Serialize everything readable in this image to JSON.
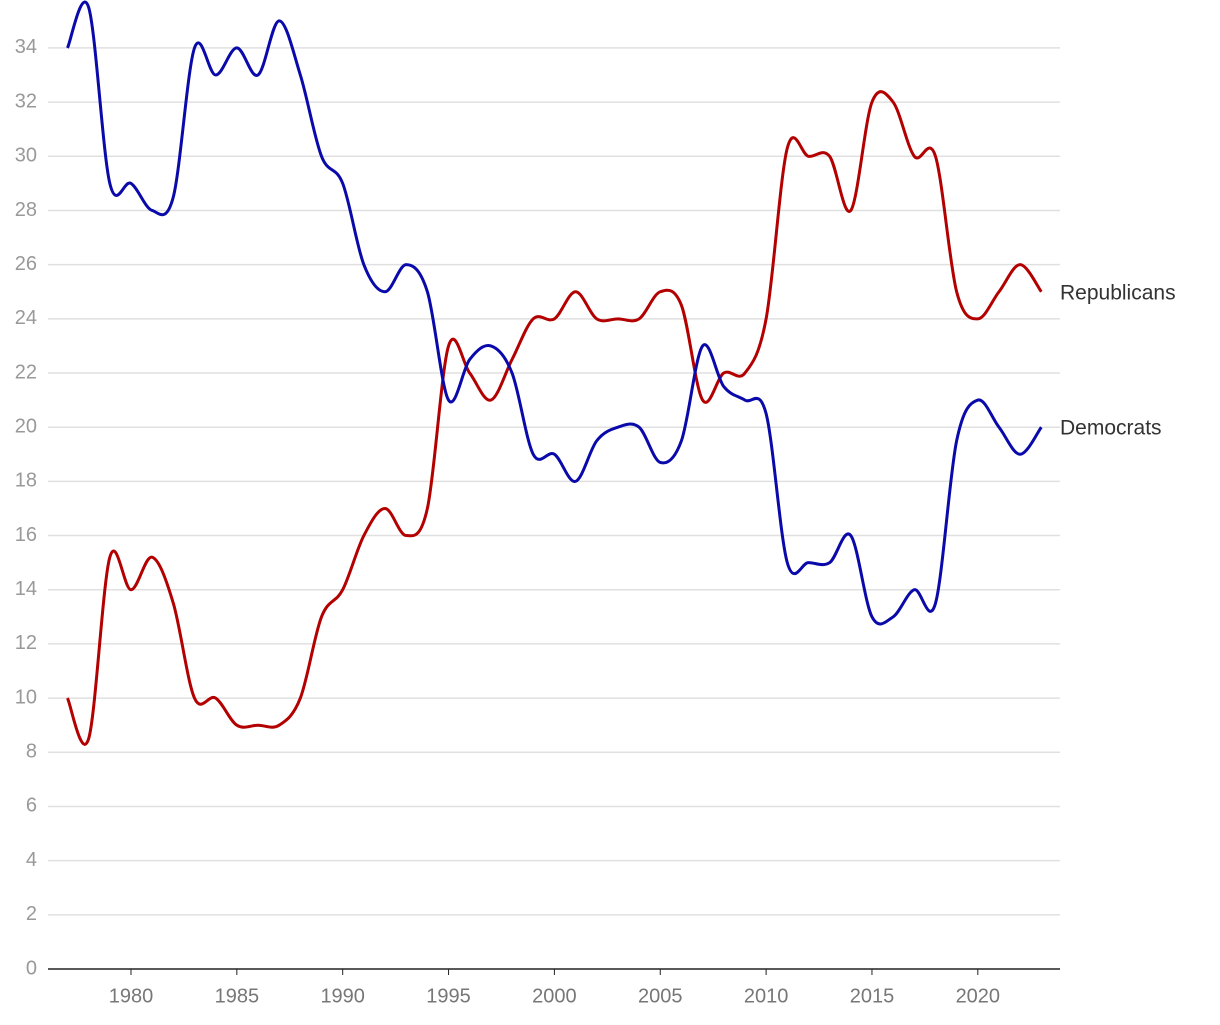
{
  "chart_data": {
    "type": "line",
    "x": [
      1977,
      1978,
      1979,
      1980,
      1981,
      1982,
      1983,
      1984,
      1985,
      1986,
      1987,
      1988,
      1989,
      1990,
      1991,
      1992,
      1993,
      1994,
      1995,
      1996,
      1997,
      1998,
      1999,
      2000,
      2001,
      2002,
      2003,
      2004,
      2005,
      2006,
      2007,
      2008,
      2009,
      2010,
      2011,
      2012,
      2013,
      2014,
      2015,
      2016,
      2017,
      2018,
      2019,
      2020,
      2021,
      2022,
      2023
    ],
    "series": [
      {
        "name": "Republicans",
        "color": "#b30000",
        "values": [
          10,
          8.5,
          15.2,
          14,
          15.2,
          13.5,
          10,
          10,
          9,
          9,
          9,
          10,
          13,
          14,
          16,
          17,
          16,
          17,
          23,
          22,
          21,
          22.5,
          24,
          24,
          25,
          24,
          24,
          24,
          25,
          24.5,
          21,
          22,
          22,
          24,
          30.3,
          30,
          30,
          28,
          32,
          32,
          30,
          30,
          25,
          24,
          25,
          26,
          25
        ]
      },
      {
        "name": "Democrats",
        "color": "#0a0aaa",
        "values": [
          34,
          35.5,
          29,
          29,
          28,
          28.5,
          34,
          33,
          34,
          33,
          35,
          33,
          30,
          29,
          26,
          25,
          26,
          25,
          21,
          22.5,
          23,
          22,
          19,
          19,
          18,
          19.5,
          20,
          20,
          18.7,
          19.5,
          23,
          21.5,
          21,
          20.5,
          15,
          15,
          15,
          16,
          13,
          13,
          14,
          13.5,
          19.5,
          21,
          20,
          19,
          20
        ]
      }
    ],
    "xlim": [
      1976,
      2024
    ],
    "xticks": [
      1980,
      1985,
      1990,
      1995,
      2000,
      2005,
      2010,
      2015,
      2020
    ],
    "ylim": [
      0,
      35.5
    ],
    "yticks": [
      0,
      2,
      4,
      6,
      8,
      10,
      12,
      14,
      16,
      18,
      20,
      22,
      24,
      26,
      28,
      30,
      32,
      34
    ],
    "grid": true
  }
}
